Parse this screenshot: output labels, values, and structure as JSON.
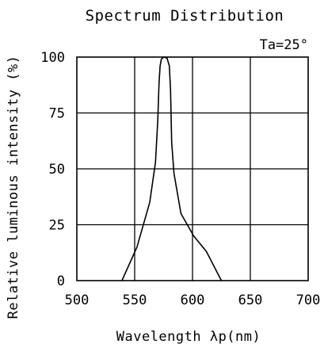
{
  "chart_data": {
    "type": "line",
    "title": "Spectrum Distribution",
    "annotation": "Ta=25°",
    "xlabel": "Wavelength λp(nm)",
    "ylabel": "Relative luminous intensity (%)",
    "xlim": [
      500,
      700
    ],
    "ylim": [
      0,
      100
    ],
    "xticks": [
      "500",
      "550",
      "600",
      "650",
      "700"
    ],
    "yticks": [
      "0",
      "25",
      "50",
      "75",
      "100"
    ],
    "grid": true,
    "series": [
      {
        "x": [
          539,
          552,
          563,
          568,
          570,
          571,
          572,
          573,
          575,
          578,
          580,
          581,
          582,
          584,
          590,
          601,
          612,
          625
        ],
        "y": [
          0,
          15,
          35,
          53,
          72,
          88,
          96,
          99,
          100,
          99.5,
          96,
          85,
          62,
          48,
          30,
          20,
          13,
          0
        ]
      }
    ]
  }
}
